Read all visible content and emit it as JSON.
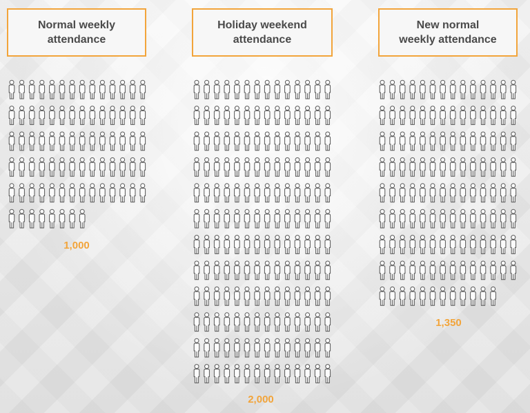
{
  "colors": {
    "accent": "#f2a43a",
    "figure_stroke": "#555555",
    "label_text": "#4a4a4a"
  },
  "chart_data": {
    "type": "pictograph",
    "unit_icon": "person-icon",
    "categories": [
      "Normal weekly\nattendance",
      "Holiday weekend\nattendance",
      "New normal\nweekly attendance"
    ],
    "values": [
      1000,
      2000,
      1350
    ],
    "value_labels": [
      "1,000",
      "2,000",
      "1,350"
    ],
    "icons_shown": [
      78,
      168,
      124
    ]
  }
}
